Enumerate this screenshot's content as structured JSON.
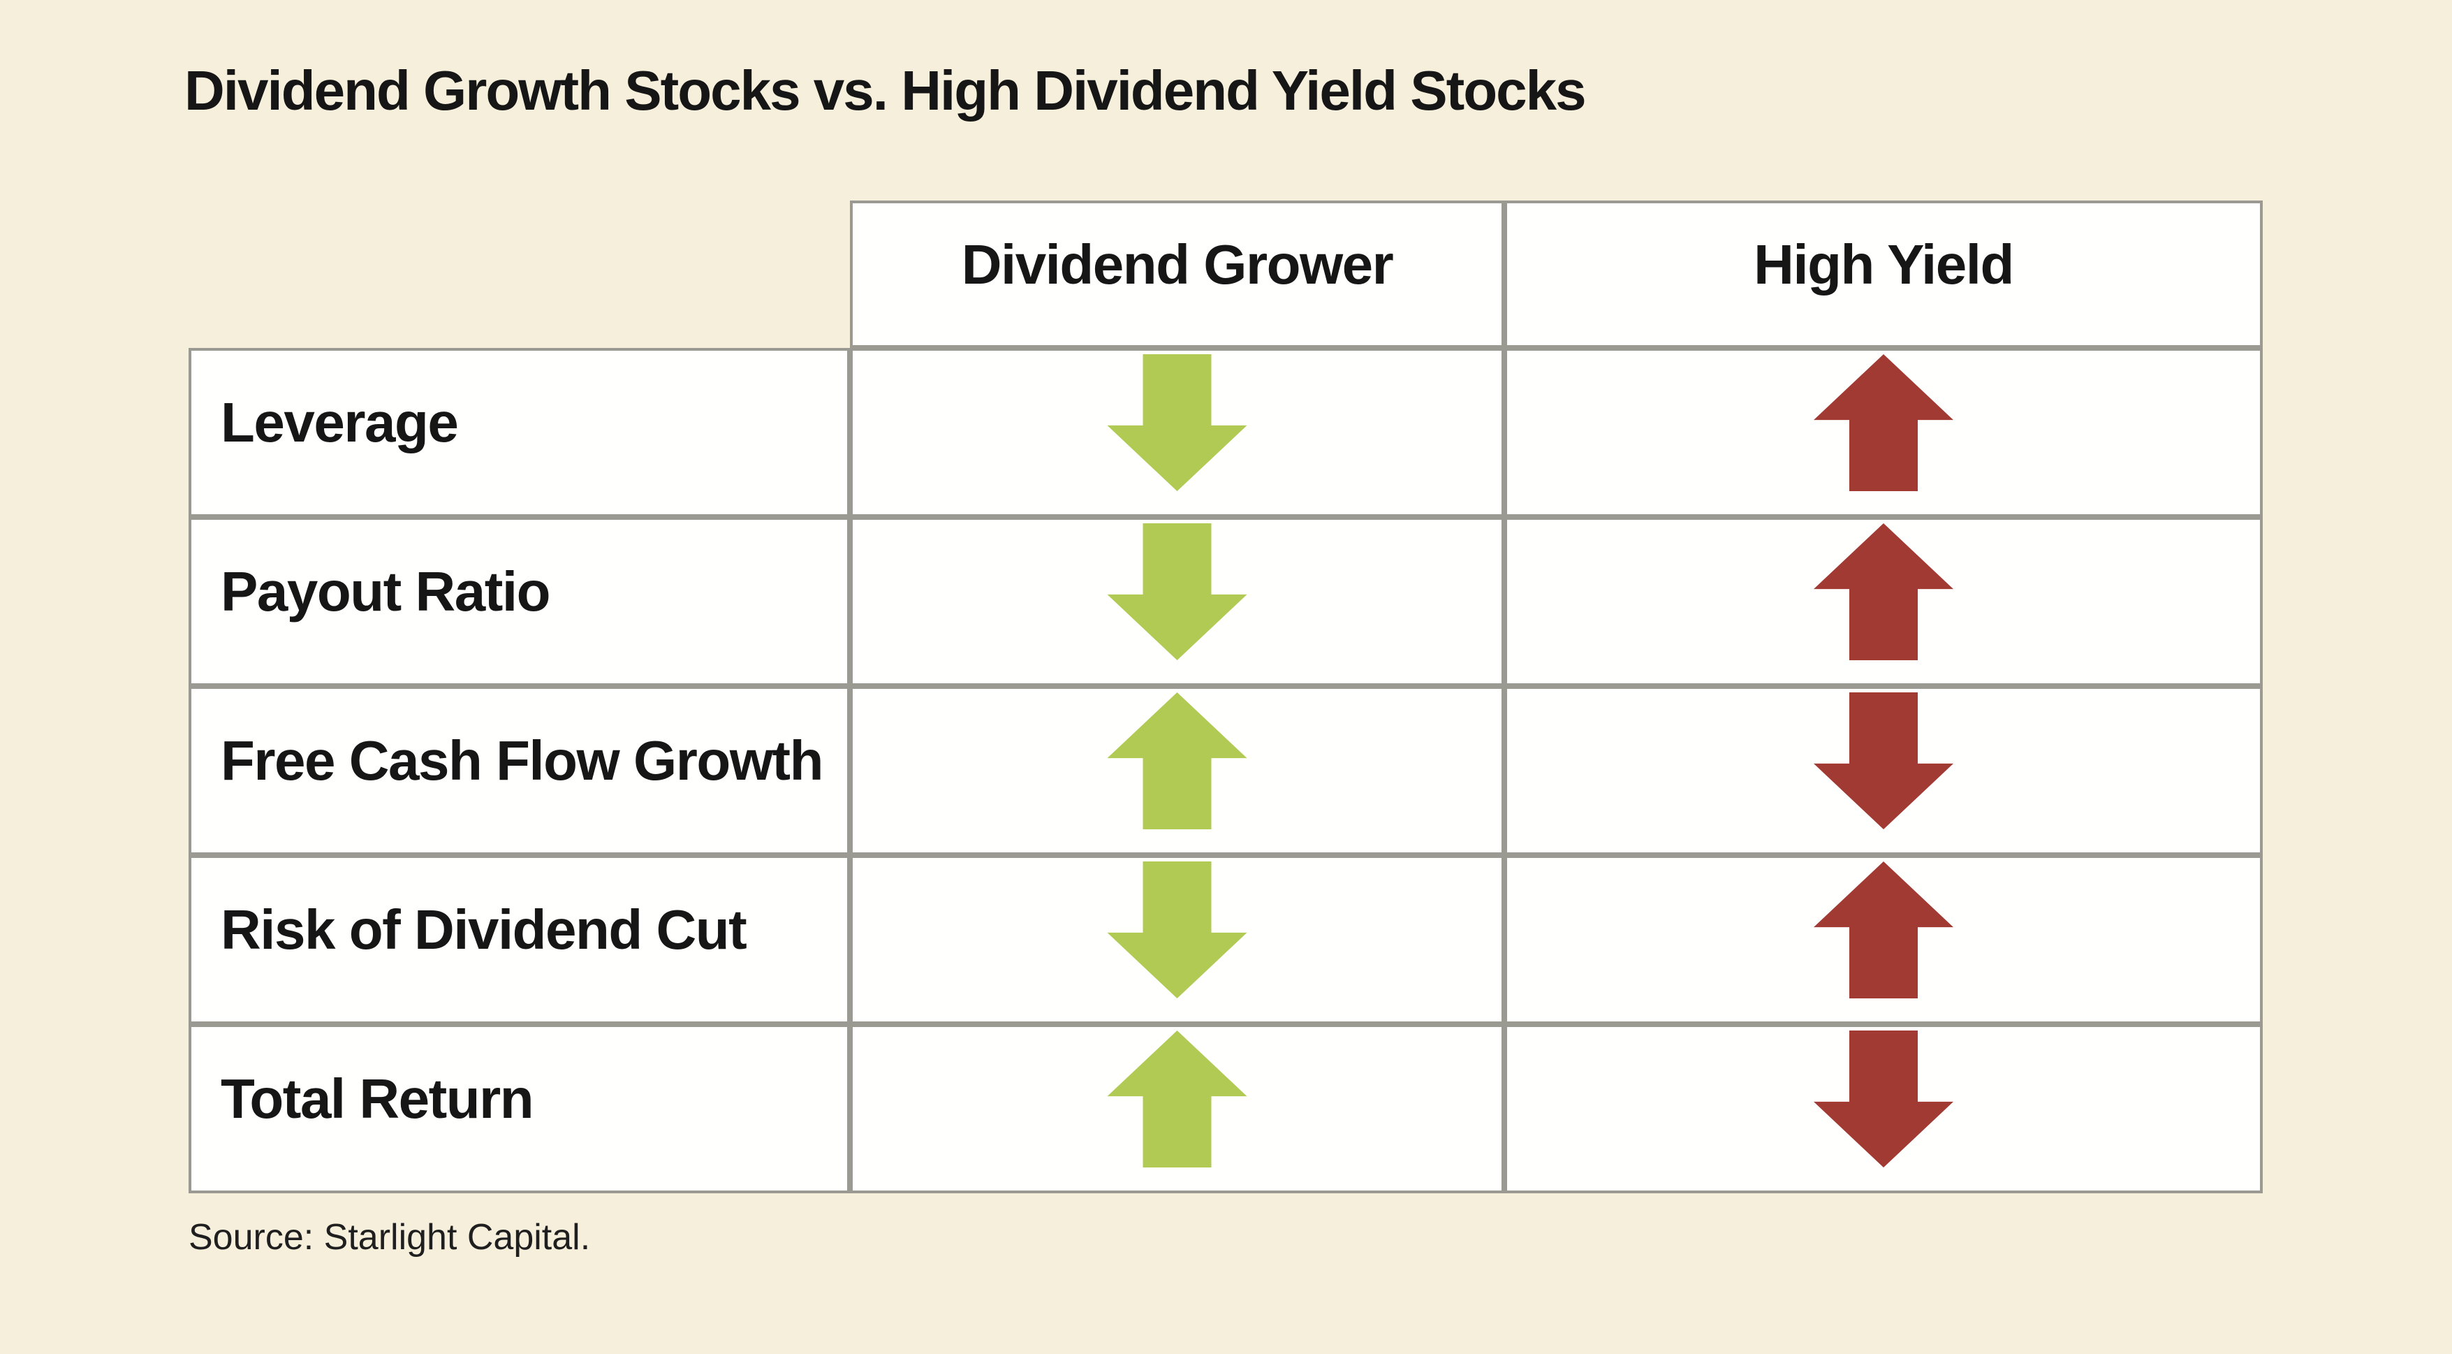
{
  "colors": {
    "background": "#f6efdc",
    "cell": "#fffffe",
    "border": "#9a9a92",
    "text": "#161616",
    "green_arrow": "#b0ca54",
    "red_arrow": "#a23a34"
  },
  "title": "Dividend Growth Stocks vs. High Dividend Yield Stocks",
  "source": "Source: Starlight Capital.",
  "table": {
    "columns": [
      "Dividend Grower",
      "High Yield"
    ],
    "rows": [
      {
        "label": "Leverage",
        "dividend_grower": "down",
        "high_yield": "up"
      },
      {
        "label": "Payout Ratio",
        "dividend_grower": "down",
        "high_yield": "up"
      },
      {
        "label": "Free Cash Flow Growth",
        "dividend_grower": "up",
        "high_yield": "down"
      },
      {
        "label": "Risk of Dividend Cut",
        "dividend_grower": "down",
        "high_yield": "up"
      },
      {
        "label": "Total Return",
        "dividend_grower": "up",
        "high_yield": "down"
      }
    ]
  },
  "chart_data": {
    "type": "table",
    "title": "Dividend Growth Stocks vs. High Dividend Yield Stocks",
    "columns": [
      "",
      "Dividend Grower",
      "High Yield"
    ],
    "rows": [
      [
        "Leverage",
        "down (green arrow)",
        "up (red arrow)"
      ],
      [
        "Payout Ratio",
        "down (green arrow)",
        "up (red arrow)"
      ],
      [
        "Free Cash Flow Growth",
        "up (green arrow)",
        "down (red arrow)"
      ],
      [
        "Risk of Dividend Cut",
        "down (green arrow)",
        "up (red arrow)"
      ],
      [
        "Total Return",
        "up (green arrow)",
        "down (red arrow)"
      ]
    ],
    "legend_position": "none",
    "source": "Source: Starlight Capital."
  }
}
